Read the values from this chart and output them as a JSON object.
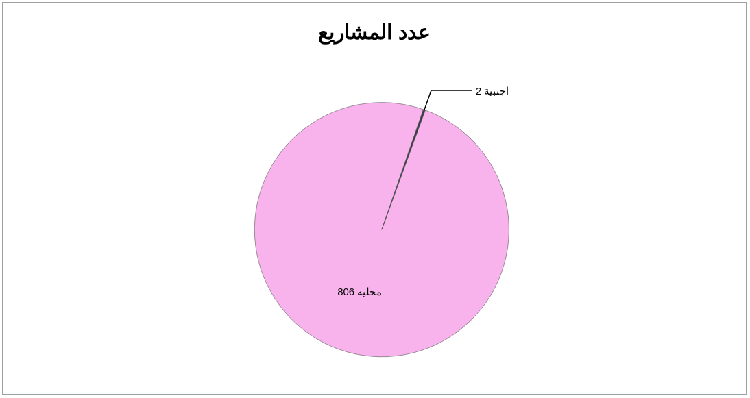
{
  "chart_data": {
    "type": "pie",
    "title": "عدد المشاريع",
    "categories": [
      "محلية",
      "اجنبية"
    ],
    "values": [
      806,
      2
    ],
    "colors": [
      "#f9b3ec",
      "#3a3a4a"
    ],
    "data_labels": true
  }
}
